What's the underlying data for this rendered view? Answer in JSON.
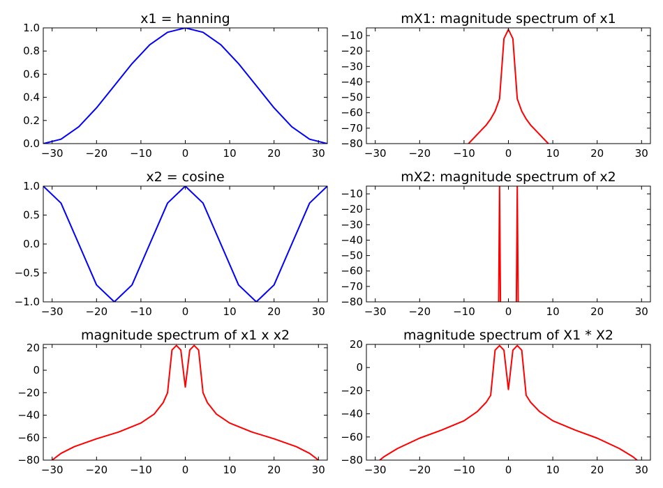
{
  "chart_data": [
    {
      "type": "line",
      "title": "x1 = hanning",
      "xlim": [
        -32,
        32
      ],
      "ylim": [
        0.0,
        1.0
      ],
      "xticks": [
        -30,
        -20,
        -10,
        0,
        10,
        20,
        30
      ],
      "yticks": [
        0.0,
        0.2,
        0.4,
        0.6,
        0.8,
        1.0
      ],
      "xtick_labels": [
        "−30",
        "−20",
        "−10",
        "0",
        "10",
        "20",
        "30"
      ],
      "ytick_labels": [
        "0.0",
        "0.2",
        "0.4",
        "0.6",
        "0.8",
        "1.0"
      ],
      "series": [
        {
          "color": "#0000ff",
          "x": [
            -32,
            -28,
            -24,
            -20,
            -16,
            -12,
            -8,
            -4,
            0,
            4,
            8,
            12,
            16,
            20,
            24,
            28,
            32
          ],
          "y": [
            0.0,
            0.038,
            0.146,
            0.309,
            0.5,
            0.691,
            0.854,
            0.962,
            1.0,
            0.962,
            0.854,
            0.691,
            0.5,
            0.309,
            0.146,
            0.038,
            0.0
          ]
        }
      ]
    },
    {
      "type": "line",
      "title": "mX1: magnitude spectrum of x1",
      "xlim": [
        -32,
        32
      ],
      "ylim": [
        -80,
        -5
      ],
      "xticks": [
        -30,
        -20,
        -10,
        0,
        10,
        20,
        30
      ],
      "yticks": [
        -80,
        -70,
        -60,
        -50,
        -40,
        -30,
        -20,
        -10
      ],
      "xtick_labels": [
        "−30",
        "−20",
        "−10",
        "0",
        "10",
        "20",
        "30"
      ],
      "ytick_labels": [
        "−80",
        "−70",
        "−60",
        "−50",
        "−40",
        "−30",
        "−20",
        "−10"
      ],
      "series": [
        {
          "color": "#ff0000",
          "x": [
            -9,
            -8,
            -7,
            -6,
            -5,
            -4,
            -3,
            -2,
            -1,
            0,
            1,
            2,
            3,
            4,
            5,
            6,
            7,
            8,
            9
          ],
          "y": [
            -80,
            -77,
            -74,
            -71,
            -68,
            -64,
            -59,
            -51,
            -12,
            -6,
            -12,
            -51,
            -59,
            -64,
            -68,
            -71,
            -74,
            -77,
            -80
          ]
        }
      ]
    },
    {
      "type": "line",
      "title": "x2 = cosine",
      "xlim": [
        -32,
        32
      ],
      "ylim": [
        -1.0,
        1.0
      ],
      "xticks": [
        -30,
        -20,
        -10,
        0,
        10,
        20,
        30
      ],
      "yticks": [
        -1.0,
        -0.5,
        0.0,
        0.5,
        1.0
      ],
      "xtick_labels": [
        "−30",
        "−20",
        "−10",
        "0",
        "10",
        "20",
        "30"
      ],
      "ytick_labels": [
        "−1.0",
        "−0.5",
        "0.0",
        "0.5",
        "1.0"
      ],
      "series": [
        {
          "color": "#0000ff",
          "x": [
            -32,
            -28,
            -24,
            -20,
            -16,
            -12,
            -8,
            -4,
            0,
            4,
            8,
            12,
            16,
            20,
            24,
            28,
            32
          ],
          "y": [
            1.0,
            0.707,
            0.0,
            -0.707,
            -1.0,
            -0.707,
            0.0,
            0.707,
            1.0,
            0.707,
            0.0,
            -0.707,
            -1.0,
            -0.707,
            0.0,
            0.707,
            1.0
          ]
        }
      ]
    },
    {
      "type": "line",
      "title": "mX2: magnitude spectrum of x2",
      "xlim": [
        -32,
        32
      ],
      "ylim": [
        -80,
        -5
      ],
      "xticks": [
        -30,
        -20,
        -10,
        0,
        10,
        20,
        30
      ],
      "yticks": [
        -80,
        -70,
        -60,
        -50,
        -40,
        -30,
        -20,
        -10
      ],
      "xtick_labels": [
        "−30",
        "−20",
        "−10",
        "0",
        "10",
        "20",
        "30"
      ],
      "ytick_labels": [
        "−80",
        "−70",
        "−60",
        "−50",
        "−40",
        "−30",
        "−20",
        "−10"
      ],
      "series": [
        {
          "color": "#ff0000",
          "x": [
            -2.2,
            -2.0,
            -1.8
          ],
          "y": [
            -80,
            -5,
            -80
          ]
        },
        {
          "color": "#ff0000",
          "x": [
            1.8,
            2.0,
            2.2
          ],
          "y": [
            -80,
            -5,
            -80
          ]
        }
      ]
    },
    {
      "type": "line",
      "title": "magnitude spectrum of x1 x x2",
      "xlim": [
        -32,
        32
      ],
      "ylim": [
        -80,
        23
      ],
      "xticks": [
        -30,
        -20,
        -10,
        0,
        10,
        20,
        30
      ],
      "yticks": [
        -80,
        -60,
        -40,
        -20,
        0,
        20
      ],
      "xtick_labels": [
        "−30",
        "−20",
        "−10",
        "0",
        "10",
        "20",
        "30"
      ],
      "ytick_labels": [
        "−80",
        "−60",
        "−40",
        "−20",
        "0",
        "20"
      ],
      "series": [
        {
          "color": "#ff0000",
          "x": [
            -30,
            -28,
            -25,
            -20,
            -15,
            -10,
            -7,
            -5,
            -4,
            -3,
            -2,
            -1,
            0,
            1,
            2,
            3,
            4,
            5,
            7,
            10,
            15,
            20,
            25,
            28,
            30
          ],
          "y": [
            -80,
            -74,
            -68,
            -61,
            -55,
            -47,
            -39,
            -29,
            -20,
            18,
            22,
            18,
            -15,
            18,
            22,
            18,
            -20,
            -29,
            -39,
            -47,
            -55,
            -61,
            -68,
            -74,
            -80
          ]
        }
      ]
    },
    {
      "type": "line",
      "title": "magnitude spectrum of X1 * X2",
      "xlim": [
        -32,
        32
      ],
      "ylim": [
        -80,
        20
      ],
      "xticks": [
        -30,
        -20,
        -10,
        0,
        10,
        20,
        30
      ],
      "yticks": [
        -80,
        -60,
        -40,
        -20,
        0,
        20
      ],
      "xtick_labels": [
        "−30",
        "−20",
        "−10",
        "0",
        "10",
        "20",
        "30"
      ],
      "ytick_labels": [
        "−80",
        "−60",
        "−40",
        "−20",
        "0",
        "20"
      ],
      "series": [
        {
          "color": "#ff0000",
          "x": [
            -29,
            -28,
            -25,
            -20,
            -15,
            -10,
            -7,
            -5,
            -4,
            -3,
            -2,
            -1,
            0,
            1,
            2,
            3,
            4,
            5,
            7,
            10,
            15,
            20,
            25,
            28,
            29
          ],
          "y": [
            -80,
            -77,
            -70,
            -61,
            -54,
            -46,
            -38,
            -30,
            -24,
            15,
            19,
            15,
            -19,
            15,
            19,
            15,
            -24,
            -30,
            -38,
            -46,
            -54,
            -61,
            -70,
            -77,
            -80
          ]
        }
      ]
    }
  ]
}
